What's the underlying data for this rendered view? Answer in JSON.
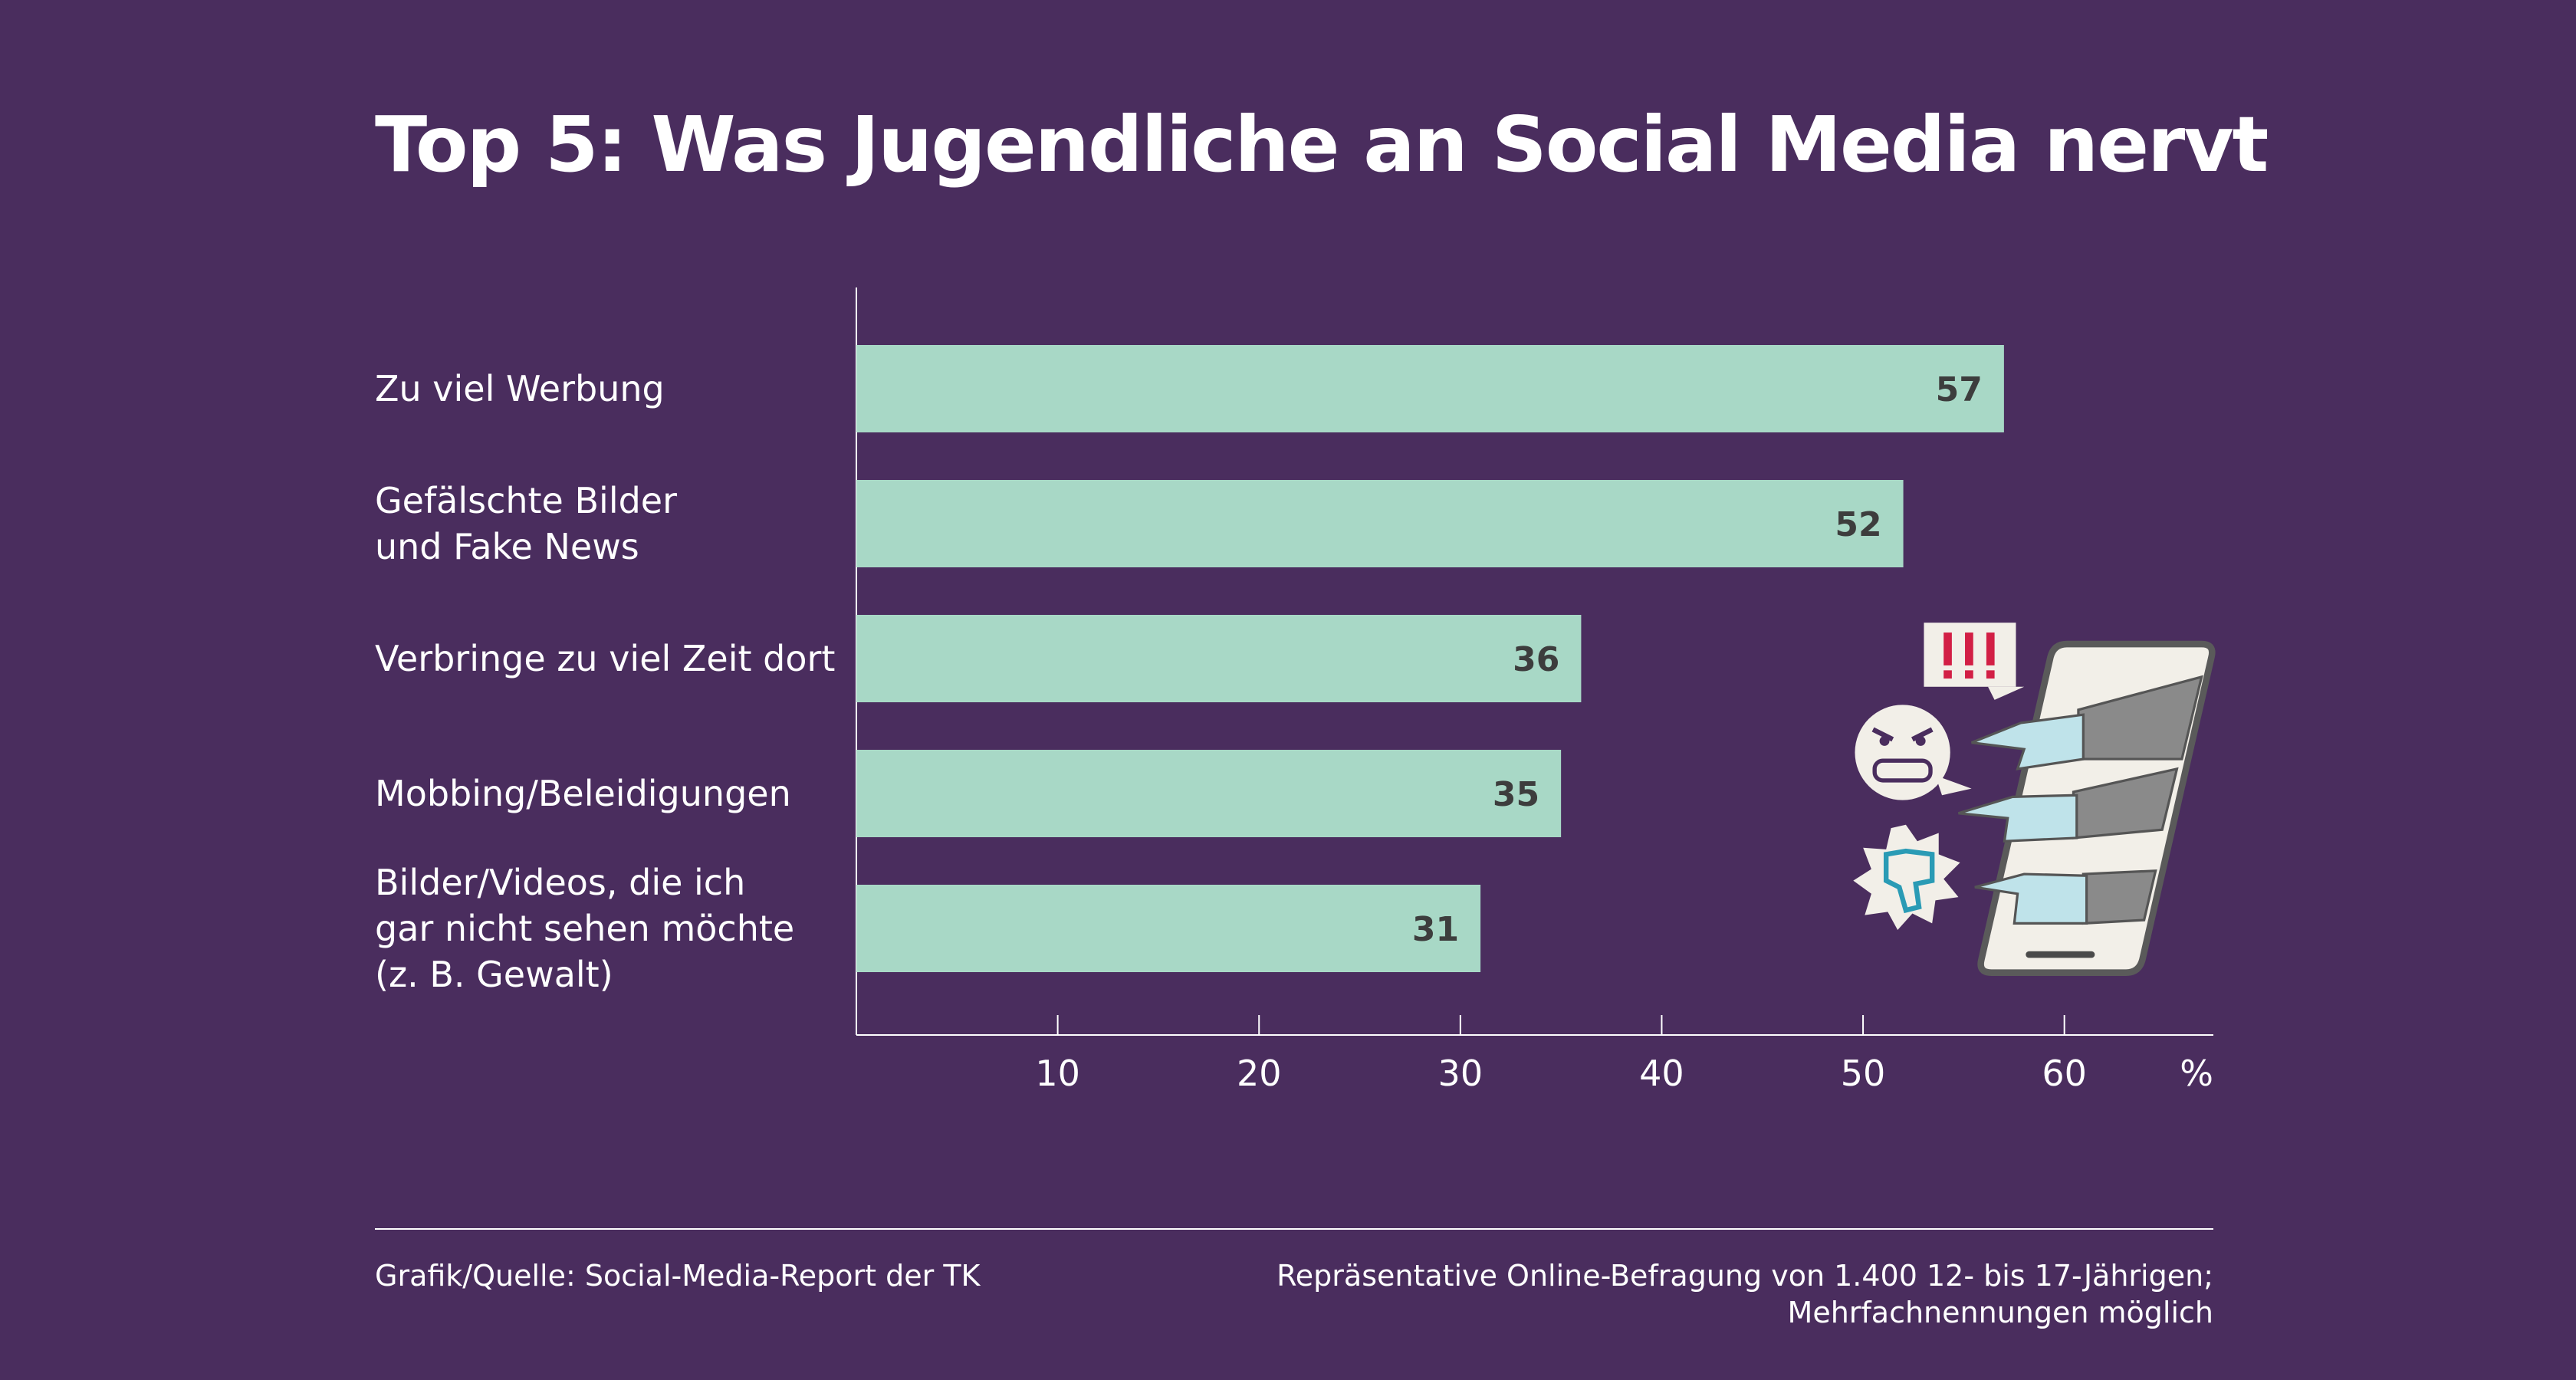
{
  "chart_data": {
    "type": "hbar",
    "title": "Top 5: Was Jugendliche an Social Media nervt",
    "categories": [
      "Zu viel Werbung",
      "Gefälschte Bilder\nund Fake News",
      "Verbringe zu viel Zeit dort",
      "Mobbing/Beleidigungen",
      "Bilder/Videos, die ich\ngar nicht sehen möchte\n(z. B. Gewalt)"
    ],
    "values": [
      57,
      52,
      36,
      35,
      31
    ],
    "color": "#a8d8c6",
    "xlim": [
      0,
      67.4
    ],
    "xticks": [
      10,
      20,
      30,
      40,
      50,
      60
    ],
    "xlabel": "%",
    "source": "Grafik/Quelle: Social-Media-Report der TK",
    "note": "Repräsentative Online-Befragung von 1.400 12- bis 17-Jährigen;\nMehrfachnennungen möglich"
  }
}
